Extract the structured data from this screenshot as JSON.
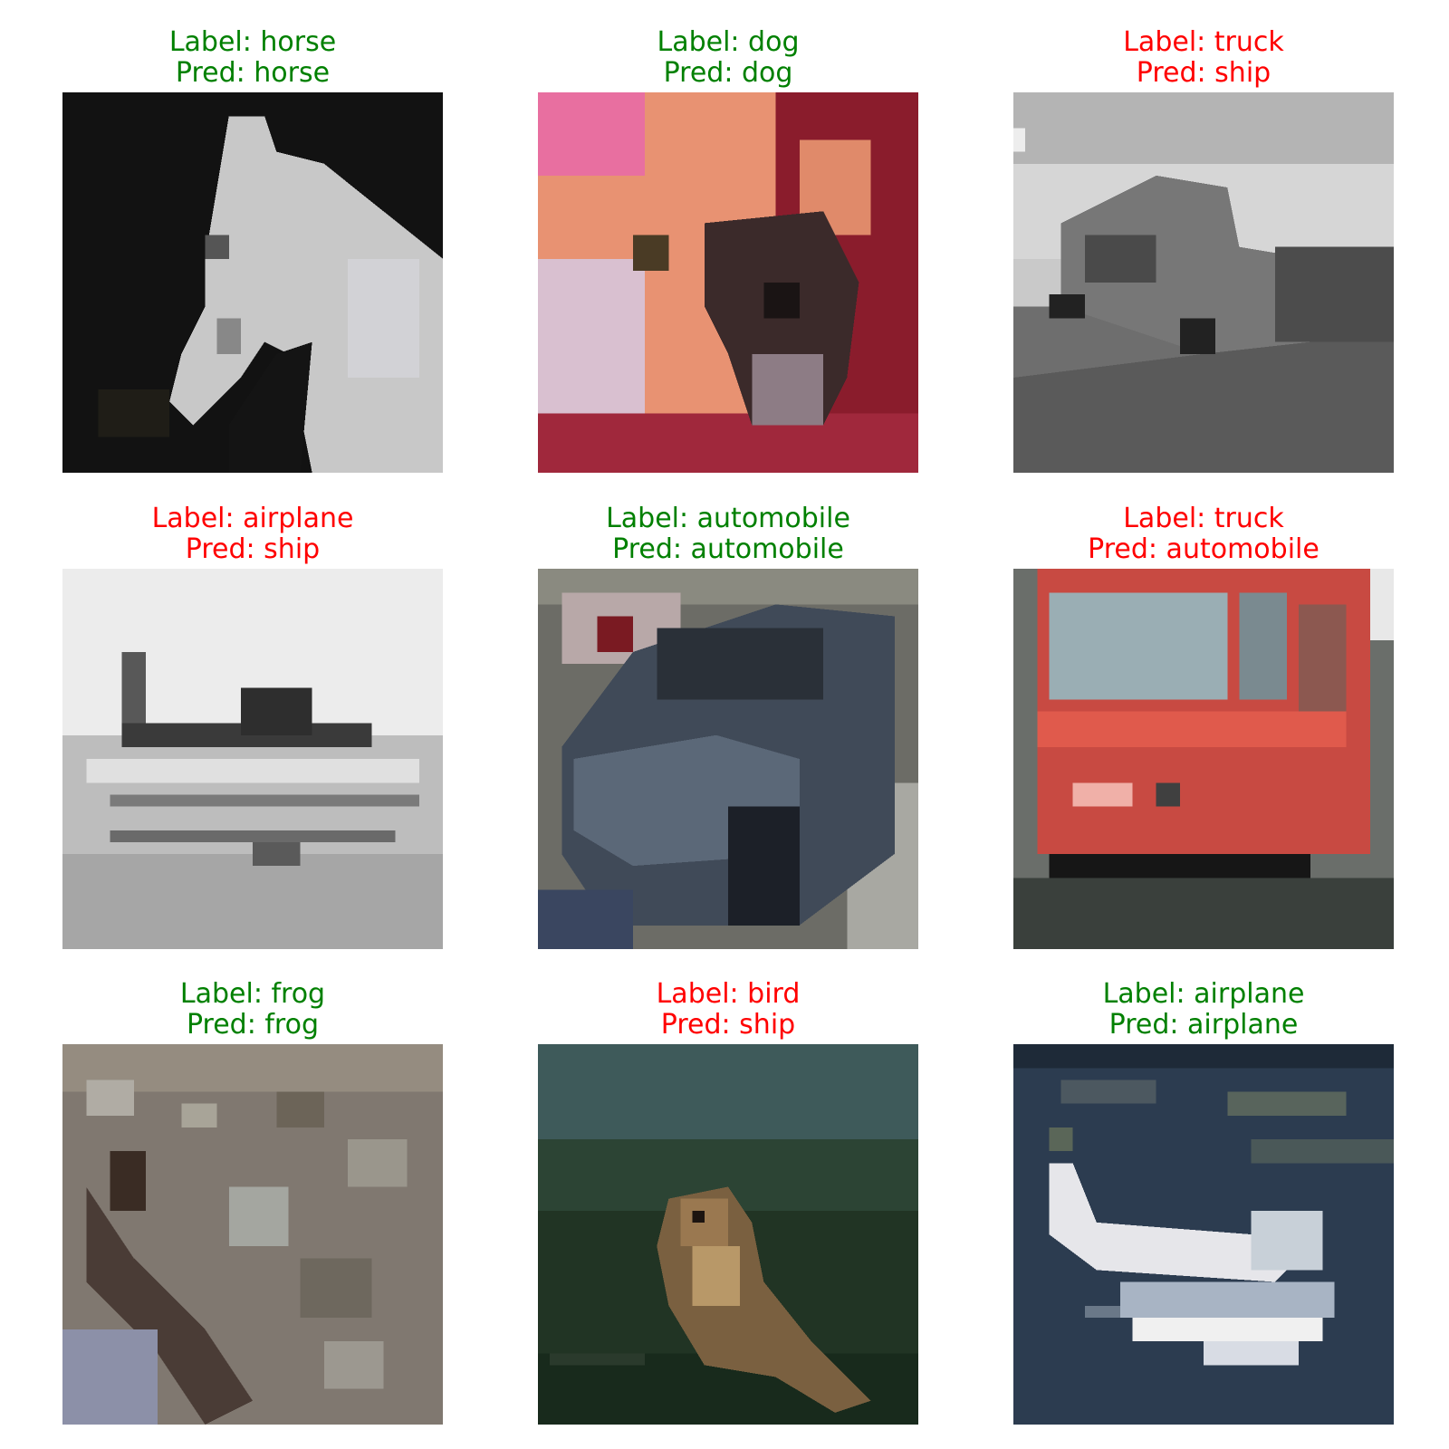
{
  "colors": {
    "correct": "#008000",
    "incorrect": "#ff0000"
  },
  "cells": [
    {
      "label": "Label: horse",
      "pred": "Pred: horse",
      "correct": true,
      "subject": "white horse head on black background"
    },
    {
      "label": "Label: dog",
      "pred": "Pred: dog",
      "correct": true,
      "subject": "small dog in front of pink flowers"
    },
    {
      "label": "Label: truck",
      "pred": "Pred: ship",
      "correct": false,
      "subject": "grayscale truck on road"
    },
    {
      "label": "Label: airplane",
      "pred": "Pred: ship",
      "correct": false,
      "subject": "grayscale plane near water"
    },
    {
      "label": "Label: automobile",
      "pred": "Pred: automobile",
      "correct": true,
      "subject": "dark blue car"
    },
    {
      "label": "Label: truck",
      "pred": "Pred: automobile",
      "correct": false,
      "subject": "red fire truck front"
    },
    {
      "label": "Label: frog",
      "pred": "Pred: frog",
      "correct": true,
      "subject": "mottled gray frog skin"
    },
    {
      "label": "Label: bird",
      "pred": "Pred: ship",
      "correct": false,
      "subject": "brown bird on dark green background"
    },
    {
      "label": "Label: airplane",
      "pred": "Pred: airplane",
      "correct": true,
      "subject": "white plane over dark blue sea"
    }
  ]
}
